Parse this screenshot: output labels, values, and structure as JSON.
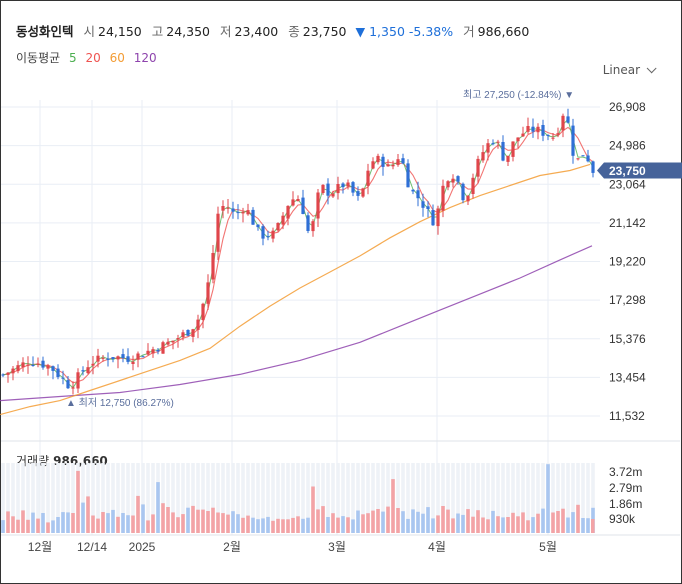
{
  "stock": {
    "name": "동성화인텍",
    "open_label": "시",
    "open": "24,150",
    "high_label": "고",
    "high": "24,350",
    "low_label": "저",
    "low": "23,400",
    "close_label": "종",
    "close": "23,750",
    "change_arrow": "▼",
    "change": "1,350",
    "change_pct": "-5.38%",
    "volume_label": "거",
    "volume": "986,660"
  },
  "ma_legend": {
    "label": "이동평균",
    "periods": [
      {
        "text": "5",
        "color": "#4caf50"
      },
      {
        "text": "20",
        "color": "#ef5350"
      },
      {
        "text": "60",
        "color": "#f39c34"
      },
      {
        "text": "120",
        "color": "#8e44ad"
      }
    ]
  },
  "scale_button": "Linear",
  "volume_panel": {
    "label": "거래량",
    "value": "986,660"
  },
  "colors": {
    "up": "#e0454b",
    "down": "#2f6fd6",
    "up_vol": "#f3a3a6",
    "down_vol": "#a9c6f0",
    "grid": "#e9eef5",
    "price_tag": "#46639a"
  },
  "chart_data": {
    "type": "candlestick",
    "price_axis": {
      "min": 11532,
      "max": 26908,
      "ticks": [
        "26,908",
        "24,986",
        "23,064",
        "21,142",
        "19,220",
        "17,298",
        "15,376",
        "13,454",
        "11,532"
      ],
      "grid": true
    },
    "volume_axis": {
      "ticks": [
        "3.72m",
        "2.79m",
        "1.86m",
        "930k"
      ]
    },
    "x_labels": [
      "12월",
      "12/14",
      "2025",
      "2월",
      "3월",
      "4월",
      "5월"
    ],
    "current_price_tag": "23,750",
    "annotations": {
      "high": "최고 27,250 (-12.84%)",
      "low": "최저 12,750 (86.27%)"
    },
    "ma5_end": 23900,
    "ma20_end": 25000,
    "ma60": [
      [
        0,
        11600
      ],
      [
        30,
        12000
      ],
      [
        60,
        12300
      ],
      [
        90,
        12800
      ],
      [
        120,
        13300
      ],
      [
        150,
        13800
      ],
      [
        180,
        14300
      ],
      [
        210,
        14900
      ],
      [
        240,
        16000
      ],
      [
        270,
        17000
      ],
      [
        300,
        17900
      ],
      [
        330,
        18700
      ],
      [
        360,
        19500
      ],
      [
        390,
        20400
      ],
      [
        420,
        21200
      ],
      [
        450,
        21900
      ],
      [
        480,
        22500
      ],
      [
        510,
        23000
      ],
      [
        540,
        23500
      ],
      [
        570,
        23750
      ],
      [
        590,
        24050
      ]
    ],
    "ma120": [
      [
        0,
        12300
      ],
      [
        60,
        12500
      ],
      [
        120,
        12700
      ],
      [
        180,
        13100
      ],
      [
        240,
        13600
      ],
      [
        300,
        14300
      ],
      [
        360,
        15200
      ],
      [
        400,
        16000
      ],
      [
        440,
        16800
      ],
      [
        480,
        17600
      ],
      [
        520,
        18400
      ],
      [
        560,
        19300
      ],
      [
        592,
        20000
      ]
    ],
    "ohlc_segments": [
      [
        0,
        13500
      ],
      [
        30,
        14300
      ],
      [
        50,
        14000
      ],
      [
        70,
        13000
      ],
      [
        90,
        14200
      ],
      [
        110,
        14500
      ],
      [
        130,
        14400
      ],
      [
        150,
        14800
      ],
      [
        170,
        15200
      ],
      [
        190,
        15800
      ],
      [
        200,
        16500
      ],
      [
        210,
        18500
      ],
      [
        218,
        21600
      ],
      [
        225,
        22100
      ],
      [
        235,
        21500
      ],
      [
        245,
        22000
      ],
      [
        260,
        20500
      ],
      [
        275,
        20600
      ],
      [
        290,
        22300
      ],
      [
        300,
        22400
      ],
      [
        310,
        20300
      ],
      [
        320,
        23000
      ],
      [
        330,
        22600
      ],
      [
        345,
        23100
      ],
      [
        360,
        22200
      ],
      [
        370,
        24200
      ],
      [
        380,
        24300
      ],
      [
        390,
        23800
      ],
      [
        400,
        24600
      ],
      [
        410,
        22800
      ],
      [
        420,
        22300
      ],
      [
        435,
        21100
      ],
      [
        445,
        23400
      ],
      [
        455,
        23600
      ],
      [
        465,
        22200
      ],
      [
        475,
        23800
      ],
      [
        485,
        24900
      ],
      [
        495,
        25400
      ],
      [
        505,
        24200
      ],
      [
        515,
        25300
      ],
      [
        525,
        25700
      ],
      [
        535,
        25800
      ],
      [
        545,
        25600
      ],
      [
        555,
        25400
      ],
      [
        565,
        26900
      ],
      [
        575,
        24100
      ],
      [
        585,
        24700
      ],
      [
        593,
        23750
      ]
    ],
    "volume_profile": [
      0.3,
      0.35,
      0.25,
      0.2,
      0.3,
      0.25,
      0.28,
      0.22,
      0.3,
      0.25,
      0.27,
      0.3,
      0.35,
      0.3,
      0.32,
      0.9,
      0.4,
      0.5,
      0.35,
      0.3,
      0.32,
      0.38,
      0.33,
      0.3,
      0.36,
      0.35,
      0.33,
      0.5,
      0.38,
      0.3,
      0.35,
      0.96,
      0.42,
      0.34,
      0.3,
      0.32,
      0.35,
      0.38,
      0.44,
      0.33,
      0.38,
      0.42,
      0.36,
      0.3,
      0.28,
      0.27,
      0.33
    ]
  }
}
